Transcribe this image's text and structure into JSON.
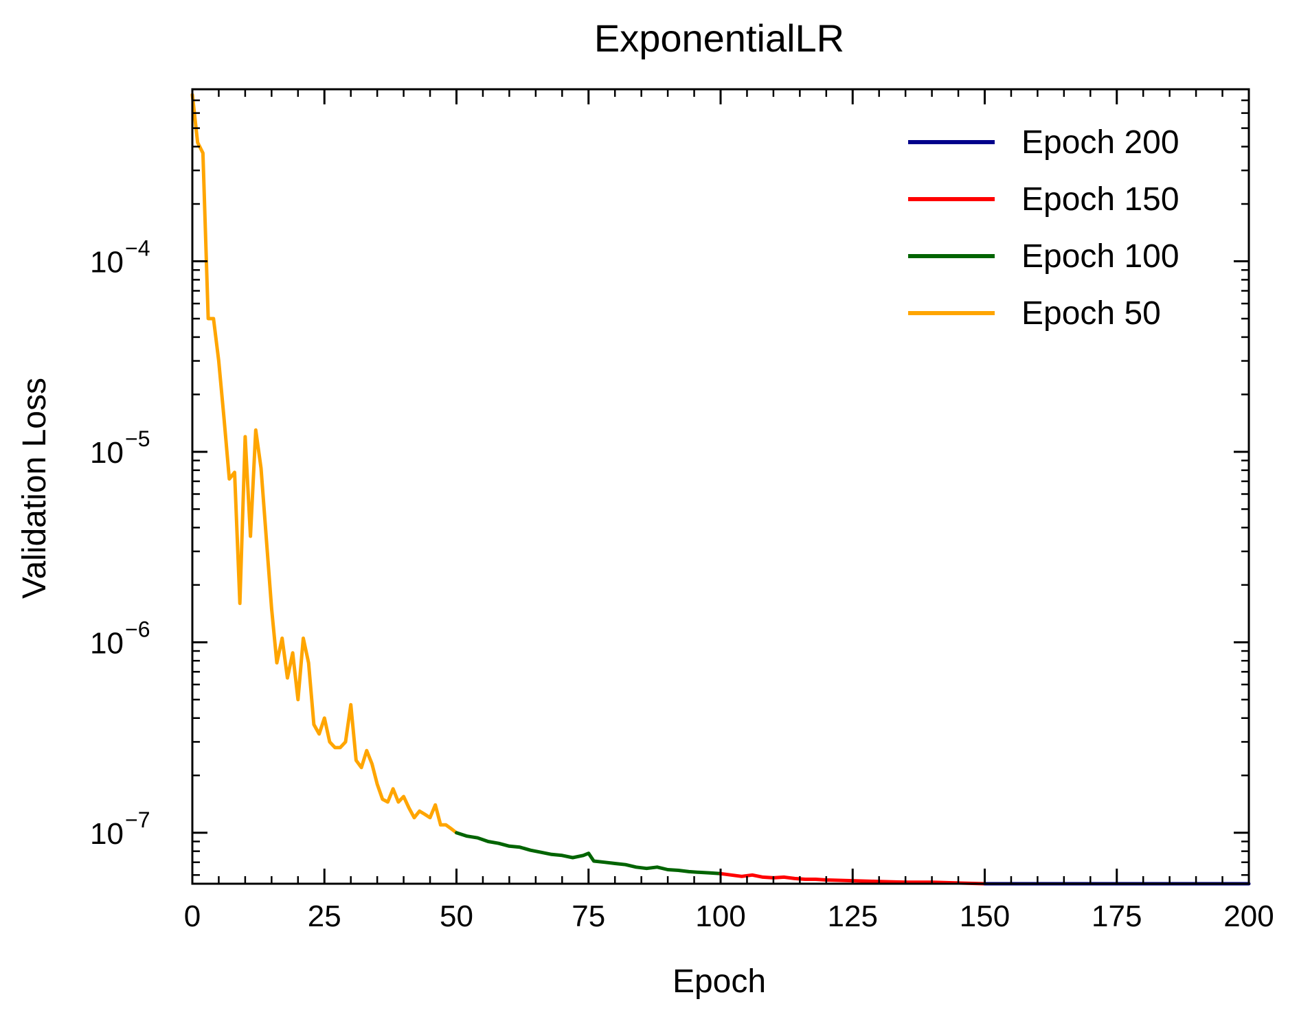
{
  "chart_data": {
    "type": "line",
    "title": "ExponentialLR",
    "xlabel": "Epoch",
    "ylabel": "Validation Loss",
    "xlim": [
      0,
      200
    ],
    "ylim": [
      5.4e-08,
      0.0008
    ],
    "yscale": "log",
    "xticks": [
      0,
      25,
      50,
      75,
      100,
      125,
      150,
      175,
      200
    ],
    "xtick_labels": [
      "0",
      "25",
      "50",
      "75",
      "100",
      "125",
      "150",
      "175",
      "200"
    ],
    "yticks": [
      1e-07,
      1e-06,
      1e-05,
      0.0001
    ],
    "ytick_labels": [
      {
        "base": "10",
        "exp": "−7"
      },
      {
        "base": "10",
        "exp": "−6"
      },
      {
        "base": "10",
        "exp": "−5"
      },
      {
        "base": "10",
        "exp": "−4"
      }
    ],
    "grid": false,
    "legend_position": "top-right",
    "series": [
      {
        "name": "Epoch 200",
        "color": "#00008b",
        "x": [
          150,
          155,
          160,
          165,
          170,
          175,
          180,
          185,
          190,
          195,
          200
        ],
        "y": [
          5.4e-08,
          5.4e-08,
          5.4e-08,
          5.4e-08,
          5.4e-08,
          5.4e-08,
          5.4e-08,
          5.4e-08,
          5.4e-08,
          5.4e-08,
          5.4e-08
        ]
      },
      {
        "name": "Epoch 150",
        "color": "#ff0000",
        "x": [
          100,
          102,
          104,
          106,
          108,
          110,
          112,
          114,
          116,
          118,
          120,
          125,
          130,
          135,
          140,
          145,
          150
        ],
        "y": [
          6.1e-08,
          6e-08,
          5.9e-08,
          6e-08,
          5.85e-08,
          5.8e-08,
          5.85e-08,
          5.75e-08,
          5.7e-08,
          5.7e-08,
          5.65e-08,
          5.6e-08,
          5.55e-08,
          5.5e-08,
          5.5e-08,
          5.45e-08,
          5.4e-08
        ]
      },
      {
        "name": "Epoch 100",
        "color": "#006400",
        "x": [
          50,
          52,
          54,
          56,
          58,
          60,
          62,
          64,
          66,
          68,
          70,
          72,
          74,
          75,
          76,
          78,
          80,
          82,
          84,
          86,
          88,
          90,
          92,
          94,
          96,
          98,
          100
        ],
        "y": [
          1e-07,
          9.6e-08,
          9.4e-08,
          9e-08,
          8.8e-08,
          8.5e-08,
          8.4e-08,
          8.1e-08,
          7.9e-08,
          7.7e-08,
          7.6e-08,
          7.4e-08,
          7.6e-08,
          7.8e-08,
          7.1e-08,
          7e-08,
          6.9e-08,
          6.8e-08,
          6.6e-08,
          6.5e-08,
          6.6e-08,
          6.4e-08,
          6.35e-08,
          6.25e-08,
          6.2e-08,
          6.15e-08,
          6.1e-08
        ]
      },
      {
        "name": "Epoch 50",
        "color": "#ffa500",
        "x": [
          0,
          1,
          2,
          3,
          4,
          5,
          6,
          7,
          8,
          9,
          10,
          11,
          12,
          13,
          14,
          15,
          16,
          17,
          18,
          19,
          20,
          21,
          22,
          23,
          24,
          25,
          26,
          27,
          28,
          29,
          30,
          31,
          32,
          33,
          34,
          35,
          36,
          37,
          38,
          39,
          40,
          41,
          42,
          43,
          44,
          45,
          46,
          47,
          48,
          49,
          50
        ],
        "y": [
          0.00075,
          0.00042,
          0.00037,
          5e-05,
          5e-05,
          3e-05,
          1.5e-05,
          7.2e-06,
          7.8e-06,
          1.6e-06,
          1.2e-05,
          3.6e-06,
          1.3e-05,
          8.2e-06,
          3.5e-06,
          1.5e-06,
          7.8e-07,
          1.05e-06,
          6.5e-07,
          8.8e-07,
          5e-07,
          1.05e-06,
          7.8e-07,
          3.7e-07,
          3.3e-07,
          4e-07,
          3e-07,
          2.8e-07,
          2.8e-07,
          3e-07,
          4.7e-07,
          2.4e-07,
          2.2e-07,
          2.7e-07,
          2.3e-07,
          1.8e-07,
          1.5e-07,
          1.45e-07,
          1.7e-07,
          1.45e-07,
          1.55e-07,
          1.35e-07,
          1.2e-07,
          1.3e-07,
          1.25e-07,
          1.2e-07,
          1.4e-07,
          1.1e-07,
          1.1e-07,
          1.05e-07,
          1e-07
        ]
      }
    ]
  }
}
